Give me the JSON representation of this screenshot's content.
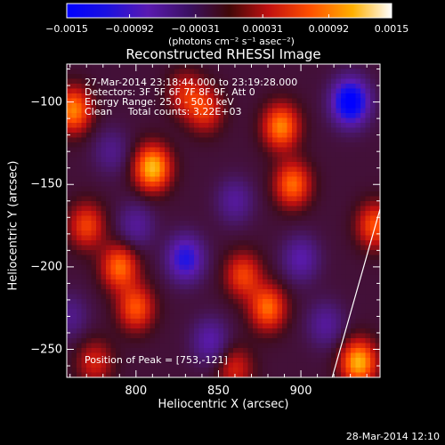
{
  "chart_data": {
    "type": "heatmap",
    "title": "Reconstructed RHESSI Image",
    "xlabel": "Heliocentric X (arcsec)",
    "ylabel": "Heliocentric Y (arcsec)",
    "xlim": [
      758,
      948
    ],
    "ylim": [
      -267,
      -77
    ],
    "xticks": [
      800,
      850,
      900
    ],
    "yticks": [
      -100,
      -150,
      -200,
      -250
    ],
    "colorbar": {
      "title": "(photons cm⁻² s⁻¹ asec⁻²)",
      "range": [
        -0.0015,
        0.0015
      ],
      "ticks": [
        "-0.0015",
        "-0.00092",
        "-0.00031",
        "0.00031",
        "0.00092",
        "0.0015"
      ],
      "colormap": [
        "#0000ff",
        "#1a1aff",
        "#5a1a9a",
        "#4a1870",
        "#8a1020",
        "#ff2000",
        "#ff8000",
        "#ffd000",
        "#ffffff"
      ]
    },
    "annotations": [
      "27-Mar-2014 23:18:44.000 to 23:19:28.000",
      "Detectors: 3F 5F 6F 7F 8F 9F, Att 0",
      "Energy Range: 25.0 - 50.0 keV",
      "Clean     Total counts: 3.22E+03"
    ],
    "peak_label": "Position of Peak = [753,-121]",
    "timestamp": "28-Mar-2014 12:10",
    "sources": [
      {
        "x": 810,
        "y": -140,
        "value": 0.00135
      },
      {
        "x": 762,
        "y": -105,
        "value": 0.0011
      },
      {
        "x": 770,
        "y": -175,
        "value": 0.0008
      },
      {
        "x": 790,
        "y": -200,
        "value": 0.001
      },
      {
        "x": 800,
        "y": -225,
        "value": 0.0009
      },
      {
        "x": 888,
        "y": -115,
        "value": 0.0011
      },
      {
        "x": 895,
        "y": -150,
        "value": 0.001
      },
      {
        "x": 880,
        "y": -225,
        "value": 0.001
      },
      {
        "x": 865,
        "y": -205,
        "value": 0.0008
      },
      {
        "x": 945,
        "y": -175,
        "value": 0.0009
      },
      {
        "x": 935,
        "y": -258,
        "value": 0.0013
      },
      {
        "x": 842,
        "y": -105,
        "value": 0.0007
      },
      {
        "x": 830,
        "y": -95,
        "value": 0.0006
      },
      {
        "x": 775,
        "y": -258,
        "value": 0.0006
      },
      {
        "x": 860,
        "y": -262,
        "value": 0.0006
      },
      {
        "x": 785,
        "y": -130,
        "value": -0.0004
      },
      {
        "x": 830,
        "y": -195,
        "value": -0.001
      },
      {
        "x": 860,
        "y": -160,
        "value": -0.0005
      },
      {
        "x": 930,
        "y": -100,
        "value": -0.0015
      },
      {
        "x": 900,
        "y": -195,
        "value": -0.0006
      },
      {
        "x": 845,
        "y": -245,
        "value": -0.0006
      },
      {
        "x": 800,
        "y": -175,
        "value": -0.0005
      },
      {
        "x": 760,
        "y": -230,
        "value": -0.0004
      },
      {
        "x": 915,
        "y": -235,
        "value": -0.0005
      }
    ],
    "limb_line": [
      [
        919,
        -267
      ],
      [
        948,
        -165
      ]
    ]
  }
}
